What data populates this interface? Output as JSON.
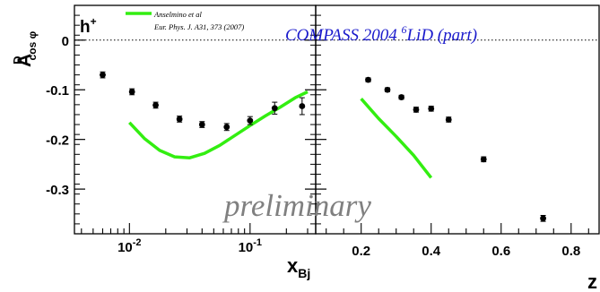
{
  "labels": {
    "panel_tag": "h",
    "panel_tag_sup": "+",
    "ylabel_main": "A",
    "ylabel_sup": "D",
    "ylabel_sub": "cos φ",
    "xlabel_left_main": "x",
    "xlabel_left_sub": "Bj",
    "xlabel_right": "z",
    "legend_name": "Anselmino et al",
    "legend_ref": "Eur. Phys. J.  A31, 373 (2007)",
    "experiment_prefix": "COMPASS    2004 ",
    "experiment_sup": "6",
    "experiment_suffix": "LiD (part)",
    "watermark": "preliminary"
  },
  "colors": {
    "data": "#000000",
    "theory": "#33ee11",
    "experiment_text": "#1a1acc",
    "watermark": "#808080",
    "axes": "#000000"
  },
  "chart_data": [
    {
      "type": "scatter",
      "xaxis": "x_Bj",
      "xscale": "log",
      "xlim": [
        0.0035,
        0.35
      ],
      "ylim": [
        -0.39,
        0.07
      ],
      "yticks": [
        {
          "value": 0,
          "label": "0"
        },
        {
          "value": -0.1,
          "label": "-0.1"
        },
        {
          "value": -0.2,
          "label": "-0.2"
        },
        {
          "value": -0.3,
          "label": "-0.3"
        }
      ],
      "xticks": [
        {
          "value": 0.01,
          "base": "10",
          "exp": "-2"
        },
        {
          "value": 0.1,
          "base": "10",
          "exp": "-1"
        }
      ],
      "zero_line": "dotted",
      "series": [
        {
          "name": "COMPASS 2004 6LiD (part)",
          "x": [
            0.006,
            0.0105,
            0.0165,
            0.026,
            0.04,
            0.064,
            0.1,
            0.16,
            0.27
          ],
          "y": [
            -0.07,
            -0.104,
            -0.131,
            -0.159,
            -0.17,
            -0.175,
            -0.162,
            -0.137,
            -0.133
          ],
          "yerr": [
            0.006,
            0.006,
            0.006,
            0.006,
            0.006,
            0.007,
            0.008,
            0.012,
            0.017
          ]
        },
        {
          "name": "Anselmino et al",
          "style": "line",
          "x": [
            0.01,
            0.0133,
            0.0178,
            0.0237,
            0.0316,
            0.042,
            0.056,
            0.075,
            0.1,
            0.133,
            0.178,
            0.237,
            0.3
          ],
          "y": [
            -0.166,
            -0.198,
            -0.222,
            -0.235,
            -0.237,
            -0.228,
            -0.212,
            -0.192,
            -0.172,
            -0.153,
            -0.135,
            -0.116,
            -0.104
          ]
        }
      ]
    },
    {
      "type": "scatter",
      "xaxis": "z",
      "xlim": [
        0.07,
        0.88
      ],
      "ylim": [
        -0.39,
        0.07
      ],
      "xticks": [
        {
          "value": 0.2,
          "label": "0.2"
        },
        {
          "value": 0.4,
          "label": "0.4"
        },
        {
          "value": 0.6,
          "label": "0.6"
        },
        {
          "value": 0.8,
          "label": "0.8"
        }
      ],
      "zero_line": "dotted",
      "series": [
        {
          "name": "COMPASS 2004 6LiD (part)",
          "x": [
            0.22,
            0.275,
            0.315,
            0.357,
            0.4,
            0.45,
            0.55,
            0.72
          ],
          "y": [
            -0.08,
            -0.1,
            -0.115,
            -0.14,
            -0.138,
            -0.16,
            -0.24,
            -0.359
          ],
          "yerr": [
            0.004,
            0.004,
            0.004,
            0.005,
            0.005,
            0.005,
            0.005,
            0.006
          ]
        },
        {
          "name": "Anselmino et al",
          "style": "line",
          "x": [
            0.2,
            0.25,
            0.3,
            0.35,
            0.4
          ],
          "y": [
            -0.118,
            -0.158,
            -0.194,
            -0.232,
            -0.277
          ]
        }
      ]
    }
  ]
}
